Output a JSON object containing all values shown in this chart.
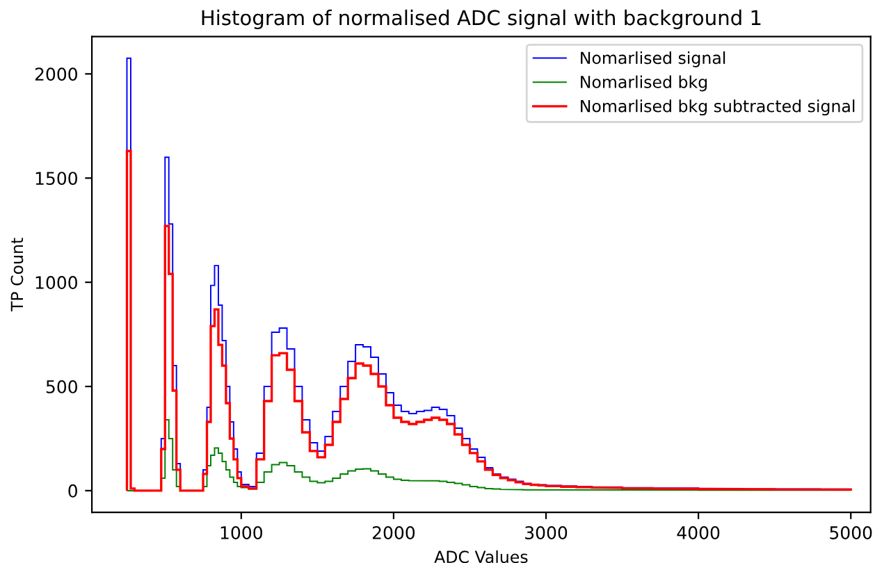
{
  "chart_data": {
    "type": "histogram",
    "title": "Histogram of normalised ADC signal with background 1",
    "xlabel": "ADC Values",
    "ylabel": "TP Count",
    "bins": [
      250,
      275,
      300,
      325,
      350,
      375,
      400,
      425,
      450,
      475,
      500,
      525,
      550,
      575,
      600,
      625,
      650,
      675,
      700,
      725,
      750,
      775,
      800,
      825,
      850,
      875,
      900,
      925,
      950,
      975,
      1000,
      1050,
      1100,
      1150,
      1200,
      1250,
      1300,
      1350,
      1400,
      1450,
      1500,
      1550,
      1600,
      1650,
      1700,
      1750,
      1800,
      1850,
      1900,
      1950,
      2000,
      2050,
      2100,
      2150,
      2200,
      2250,
      2300,
      2350,
      2400,
      2450,
      2500,
      2550,
      2600,
      2650,
      2700,
      2750,
      2800,
      2850,
      2900,
      2950,
      3000,
      3100,
      3200,
      3300,
      3400,
      3500,
      3600,
      3700,
      3800,
      3900,
      4000,
      4100,
      4200,
      4300,
      4400,
      4500,
      4600,
      4700,
      4800,
      4900,
      5000
    ],
    "series": [
      {
        "name": "Nomarlised signal",
        "color": "#0000ff",
        "values": [
          2075,
          10,
          0,
          0,
          0,
          0,
          0,
          0,
          0,
          250,
          1600,
          1280,
          600,
          130,
          0,
          0,
          0,
          0,
          0,
          0,
          100,
          400,
          985,
          1080,
          890,
          720,
          500,
          330,
          200,
          90,
          30,
          20,
          180,
          500,
          760,
          780,
          680,
          500,
          340,
          230,
          190,
          260,
          380,
          500,
          620,
          700,
          690,
          640,
          560,
          470,
          410,
          380,
          370,
          380,
          385,
          400,
          390,
          360,
          300,
          250,
          200,
          160,
          110,
          80,
          65,
          55,
          45,
          35,
          30,
          28,
          25,
          22,
          20,
          18,
          17,
          15,
          14,
          13,
          12,
          12,
          11,
          10,
          10,
          9,
          9,
          8,
          8,
          8,
          7,
          7
        ]
      },
      {
        "name": "Nomarlised bkg",
        "color": "#008000",
        "values": [
          0,
          0,
          0,
          0,
          0,
          0,
          0,
          0,
          0,
          60,
          340,
          250,
          100,
          20,
          0,
          0,
          0,
          0,
          0,
          0,
          20,
          120,
          170,
          205,
          180,
          140,
          100,
          65,
          40,
          20,
          15,
          8,
          40,
          90,
          125,
          135,
          120,
          90,
          65,
          45,
          38,
          45,
          60,
          80,
          95,
          103,
          105,
          95,
          80,
          65,
          55,
          50,
          48,
          48,
          48,
          47,
          45,
          40,
          35,
          28,
          20,
          15,
          10,
          8,
          6,
          5,
          5,
          4,
          4,
          4,
          3,
          3,
          3,
          3,
          3,
          3,
          3,
          3,
          3,
          3,
          2,
          2,
          2,
          2,
          2,
          2,
          2,
          2,
          2,
          2
        ]
      },
      {
        "name": "Nomarlised bkg subtracted signal",
        "color": "#ff0000",
        "values": [
          1630,
          10,
          0,
          0,
          0,
          0,
          0,
          0,
          0,
          200,
          1270,
          1040,
          480,
          100,
          0,
          0,
          0,
          0,
          0,
          0,
          80,
          330,
          790,
          870,
          700,
          600,
          420,
          250,
          150,
          60,
          20,
          10,
          150,
          430,
          650,
          660,
          580,
          430,
          280,
          190,
          160,
          220,
          330,
          440,
          540,
          610,
          600,
          560,
          500,
          410,
          350,
          330,
          320,
          330,
          340,
          350,
          340,
          320,
          270,
          220,
          180,
          140,
          100,
          75,
          60,
          50,
          40,
          32,
          28,
          25,
          22,
          19,
          17,
          15,
          14,
          12,
          11,
          10,
          9,
          9,
          8,
          8,
          8,
          7,
          7,
          6,
          6,
          6,
          5,
          5
        ]
      }
    ],
    "xlim": [
      20,
      5130
    ],
    "ylim": [
      -104,
      2179
    ],
    "xticks": [
      1000,
      2000,
      3000,
      4000,
      5000
    ],
    "yticks": [
      0,
      500,
      1000,
      1500,
      2000
    ],
    "legend": "top right",
    "grid": false
  }
}
